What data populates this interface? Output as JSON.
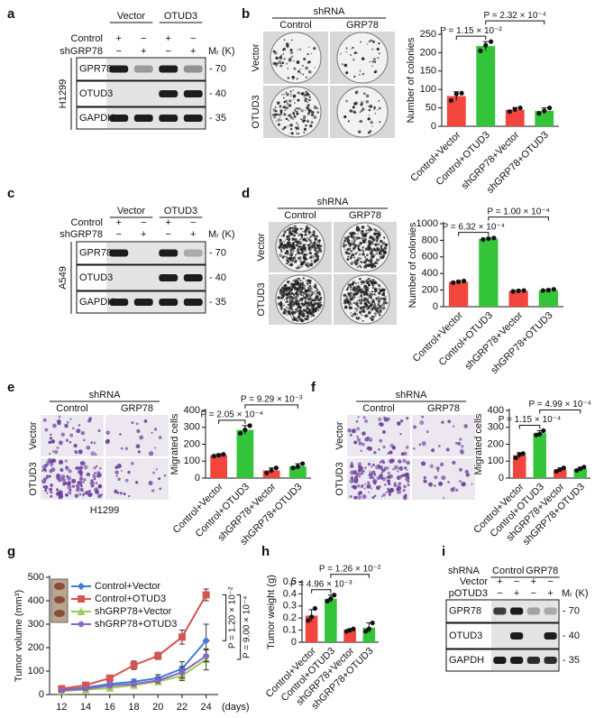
{
  "panel_labels": [
    "a",
    "b",
    "c",
    "d",
    "e",
    "f",
    "g",
    "h",
    "i"
  ],
  "blots": [
    {
      "groups": [
        "Vector",
        "OTUD3"
      ],
      "rows": [
        "Control",
        "shGRP78"
      ],
      "signs": [
        [
          "+",
          "−",
          "+",
          "−"
        ],
        [
          "−",
          "+",
          "−",
          "+"
        ]
      ],
      "mw": "Mᵣ (K)",
      "bands": [
        "GPR78",
        "OTUD3",
        "GAPDH"
      ],
      "markers": [
        "70",
        "40",
        "35"
      ],
      "cell_line": "H1299"
    },
    {
      "groups": [
        "Vector",
        "OTUD3"
      ],
      "rows": [
        "Control",
        "shGRP78"
      ],
      "signs": [
        [
          "+",
          "−",
          "+",
          "−"
        ],
        [
          "−",
          "+",
          "−",
          "+"
        ]
      ],
      "mw": "Mᵣ (K)",
      "bands": [
        "GPR78",
        "OTUD3",
        "GAPDH"
      ],
      "markers": [
        "70",
        "40",
        "35"
      ],
      "cell_line": "A549"
    },
    {
      "header": "shRNA",
      "groups": [
        "Control",
        "GRP78"
      ],
      "rows": [
        "Vector",
        "pOTUD3"
      ],
      "signs": [
        [
          "+",
          "−",
          "+",
          "−"
        ],
        [
          "−",
          "+",
          "−",
          "+"
        ]
      ],
      "mw": "Mᵣ (K)",
      "bands": [
        "GPR78",
        "OTUD3",
        "GAPDH"
      ],
      "markers": [
        "70",
        "40",
        "35"
      ]
    }
  ],
  "images": [
    {
      "header": "shRNA",
      "cols": [
        "Control",
        "GRP78"
      ],
      "rows": [
        "Vector",
        "OTUD3"
      ]
    },
    {
      "header": "shRNA",
      "cols": [
        "Control",
        "GRP78"
      ],
      "rows": [
        "Vector",
        "OTUD3"
      ]
    },
    {
      "header": "shRNA",
      "cols": [
        "Control",
        "GRP78"
      ],
      "rows": [
        "Vector",
        "OTUD3"
      ],
      "caption": "H1299"
    },
    {
      "header": "shRNA",
      "cols": [
        "Control",
        "GRP78"
      ],
      "rows": [
        "Vector",
        "OTUD3"
      ]
    }
  ],
  "chart_data": [
    {
      "type": "bar",
      "ylabel": "Number of colonies",
      "categories": [
        "Control+Vector",
        "Control+OTUD3",
        "shGRP78+Vector",
        "shGRP78+OTUD3"
      ],
      "values": [
        82,
        218,
        45,
        42
      ],
      "errors": [
        12,
        12,
        6,
        8
      ],
      "points": [
        [
          70,
          88,
          90
        ],
        [
          205,
          220,
          230
        ],
        [
          40,
          46,
          50
        ],
        [
          35,
          42,
          50
        ]
      ],
      "colors": [
        "#f2453d",
        "#33c43a",
        "#f2453d",
        "#33c43a"
      ],
      "ylim": [
        0,
        250
      ],
      "yticks": [
        0,
        50,
        100,
        150,
        200,
        250
      ],
      "annotations": [
        "P = 1.15 × 10⁻²",
        "P = 2.32 × 10⁻⁴"
      ]
    },
    {
      "type": "bar",
      "ylabel": "Number of colonies",
      "categories": [
        "Control+Vector",
        "Control+OTUD3",
        "shGRP78+Vector",
        "shGRP78+OTUD3"
      ],
      "values": [
        300,
        820,
        190,
        200
      ],
      "errors": [
        15,
        10,
        10,
        12
      ],
      "points": [
        [
          290,
          300,
          310
        ],
        [
          810,
          820,
          828
        ],
        [
          185,
          190,
          195
        ],
        [
          195,
          200,
          210
        ]
      ],
      "colors": [
        "#f2453d",
        "#33c43a",
        "#f2453d",
        "#33c43a"
      ],
      "ylim": [
        0,
        1000
      ],
      "yticks": [
        0,
        200,
        400,
        600,
        800,
        1000
      ],
      "annotations": [
        "P = 6.32 × 10⁻⁴",
        "P = 1.00 × 10⁻⁴"
      ]
    },
    {
      "type": "bar",
      "ylabel": "Migrated cells",
      "categories": [
        "Control+Vector",
        "Control+OTUD3",
        "shGRP78+Vector",
        "shGRP78+OTUD3"
      ],
      "values": [
        135,
        285,
        45,
        70
      ],
      "errors": [
        8,
        25,
        15,
        15
      ],
      "points": [
        [
          130,
          135,
          140
        ],
        [
          265,
          285,
          310
        ],
        [
          30,
          45,
          60
        ],
        [
          60,
          68,
          85
        ]
      ],
      "colors": [
        "#f2453d",
        "#33c43a",
        "#f2453d",
        "#33c43a"
      ],
      "ylim": [
        0,
        400
      ],
      "yticks": [
        0,
        100,
        200,
        300,
        400
      ],
      "annotations": [
        "P = 2.05 × 10⁻⁴",
        "P = 9.29 × 10⁻³"
      ]
    },
    {
      "type": "bar",
      "ylabel": "Migrated cells",
      "categories": [
        "Control+Vector",
        "Control+OTUD3",
        "shGRP78+Vector",
        "shGRP78+OTUD3"
      ],
      "values": [
        135,
        265,
        50,
        55
      ],
      "errors": [
        15,
        15,
        10,
        10
      ],
      "points": [
        [
          120,
          140,
          145
        ],
        [
          255,
          260,
          280
        ],
        [
          40,
          50,
          60
        ],
        [
          45,
          55,
          65
        ]
      ],
      "colors": [
        "#f2453d",
        "#33c43a",
        "#f2453d",
        "#33c43a"
      ],
      "ylim": [
        0,
        400
      ],
      "yticks": [
        0,
        100,
        200,
        300,
        400
      ],
      "annotations": [
        "P = 1.15 × 10⁻⁴",
        "P = 4.99 × 10⁻⁴"
      ]
    },
    {
      "type": "line",
      "ylabel": "Tumor volume (mm³)",
      "xlabel": "(days)",
      "x": [
        12,
        14,
        16,
        18,
        20,
        22,
        24
      ],
      "xlim": [
        11,
        25
      ],
      "xticks": [
        12,
        14,
        16,
        18,
        20,
        22,
        24
      ],
      "ylim": [
        0,
        500
      ],
      "yticks": [
        0,
        100,
        200,
        300,
        400,
        500
      ],
      "series": [
        {
          "name": "Control+Vector",
          "color": "#3f7fd6",
          "values": [
            20,
            30,
            45,
            55,
            70,
            110,
            230
          ],
          "errors": [
            3,
            4,
            8,
            10,
            15,
            30,
            70
          ]
        },
        {
          "name": "Control+OTUD3",
          "color": "#d9534f",
          "values": [
            25,
            40,
            70,
            125,
            165,
            245,
            425
          ],
          "errors": [
            3,
            5,
            10,
            18,
            15,
            30,
            25
          ]
        },
        {
          "name": "shGRP78+Vector",
          "color": "#9acd52",
          "values": [
            15,
            20,
            28,
            40,
            55,
            80,
            150
          ],
          "errors": [
            2,
            3,
            5,
            8,
            10,
            20,
            45
          ]
        },
        {
          "name": "shGRP78+OTUD3",
          "color": "#8a62c9",
          "values": [
            18,
            25,
            38,
            45,
            60,
            95,
            165
          ],
          "errors": [
            3,
            4,
            6,
            8,
            10,
            25,
            25
          ]
        }
      ],
      "annotations": [
        "P = 1.20 × 10⁻²",
        "P = 9.00 × 10⁻⁴"
      ]
    },
    {
      "type": "bar",
      "ylabel": "Tumor weight (g)",
      "categories": [
        "Control+Vector",
        "Control+OTUD3",
        "shGRP78+Vector",
        "shGRP78+OTUD3"
      ],
      "values": [
        0.22,
        0.36,
        0.1,
        0.12
      ],
      "errors": [
        0.05,
        0.03,
        0.01,
        0.04
      ],
      "points": [
        [
          0.18,
          0.21,
          0.28
        ],
        [
          0.34,
          0.36,
          0.39
        ],
        [
          0.09,
          0.1,
          0.11
        ],
        [
          0.09,
          0.11,
          0.16
        ]
      ],
      "colors": [
        "#f2453d",
        "#33c43a",
        "#f2453d",
        "#33c43a"
      ],
      "ylim": [
        0,
        0.5
      ],
      "yticks": [
        0,
        0.1,
        0.2,
        0.3,
        0.4,
        0.5
      ],
      "annotations": [
        "P = 4.96 × 10⁻³",
        "P = 1.26 × 10⁻²"
      ]
    }
  ]
}
